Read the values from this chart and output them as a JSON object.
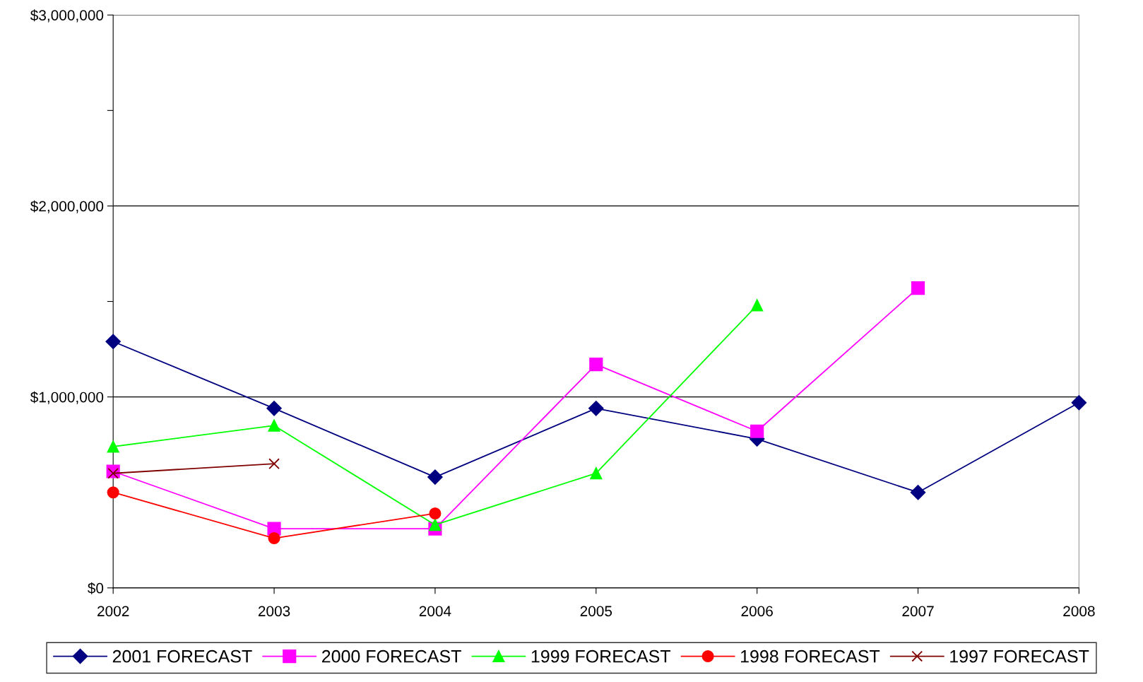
{
  "chart_data": {
    "type": "line",
    "categories": [
      "2002",
      "2003",
      "2004",
      "2005",
      "2006",
      "2007",
      "2008"
    ],
    "series": [
      {
        "name": "2001 FORECAST",
        "color": "#000080",
        "marker": "diamond",
        "values": [
          1290000,
          940000,
          580000,
          940000,
          780000,
          500000,
          970000
        ]
      },
      {
        "name": "2000 FORECAST",
        "color": "#ff00ff",
        "marker": "square",
        "values": [
          610000,
          310000,
          310000,
          1170000,
          820000,
          1570000,
          null
        ]
      },
      {
        "name": "1999 FORECAST",
        "color": "#00ff00",
        "marker": "triangle",
        "values": [
          740000,
          850000,
          330000,
          600000,
          1480000,
          null,
          null
        ]
      },
      {
        "name": "1998 FORECAST",
        "color": "#ff0000",
        "marker": "circle",
        "values": [
          500000,
          260000,
          390000,
          null,
          null,
          null,
          null
        ]
      },
      {
        "name": "1997 FORECAST",
        "color": "#800000",
        "marker": "cross",
        "values": [
          600000,
          650000,
          null,
          null,
          null,
          null,
          null
        ]
      }
    ],
    "ylim": [
      0,
      3000000
    ],
    "yticks": [
      {
        "value": 0,
        "label": "$0"
      },
      {
        "value": 500000,
        "label": null
      },
      {
        "value": 1000000,
        "label": "$1,000,000"
      },
      {
        "value": 1500000,
        "label": null
      },
      {
        "value": 2000000,
        "label": "$2,000,000"
      },
      {
        "value": 2500000,
        "label": null
      },
      {
        "value": 3000000,
        "label": "$3,000,000"
      }
    ],
    "grid": "y",
    "legend": "bottom",
    "line_style": "solid"
  }
}
